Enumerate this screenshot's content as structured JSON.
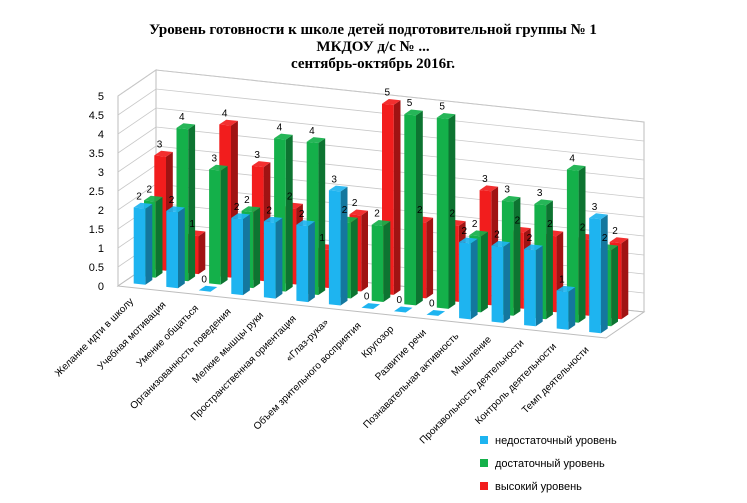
{
  "chart_data": {
    "type": "bar",
    "title_lines": [
      "Уровень готовности к школе детей подготовительной группы № 1",
      "МКДОУ д/с № ...",
      "сентябрь-октябрь 2016г."
    ],
    "categories": [
      "Желание идти в школу",
      "Учебная мотивация",
      "Умение общаться",
      "Организованность поведения",
      "Мелкие мышцы руки",
      "Пространственная ориентация",
      "«Глаз-рука»",
      "Объем зрительного восприятия",
      "Кругозор",
      "Развитие речи",
      "Познавательная активность",
      "Мышление",
      "Произвольность деятельности",
      "Контроль деятельности",
      "Темп деятельности"
    ],
    "series": [
      {
        "name": "недостаточный уровень",
        "color": "#1eb4f0",
        "values": [
          2,
          2,
          0,
          2,
          2,
          2,
          3,
          0,
          0,
          0,
          2,
          2,
          2,
          1,
          3
        ]
      },
      {
        "name": "достаточный уровень",
        "color": "#14b04a",
        "values": [
          2,
          4,
          3,
          2,
          4,
          4,
          2,
          2,
          5,
          5,
          2,
          3,
          3,
          4,
          2
        ]
      },
      {
        "name": "высокий уровень",
        "color": "#f21d1d",
        "values": [
          3,
          1,
          4,
          3,
          2,
          1,
          2,
          5,
          2,
          2,
          3,
          2,
          2,
          2,
          2
        ]
      }
    ],
    "yticks": [
      "0",
      "0.5",
      "1",
      "1.5",
      "2",
      "2.5",
      "3",
      "3.5",
      "4",
      "4.5",
      "5"
    ],
    "ylim": [
      0,
      5
    ],
    "grid": true,
    "legend_position": "bottom-right"
  }
}
